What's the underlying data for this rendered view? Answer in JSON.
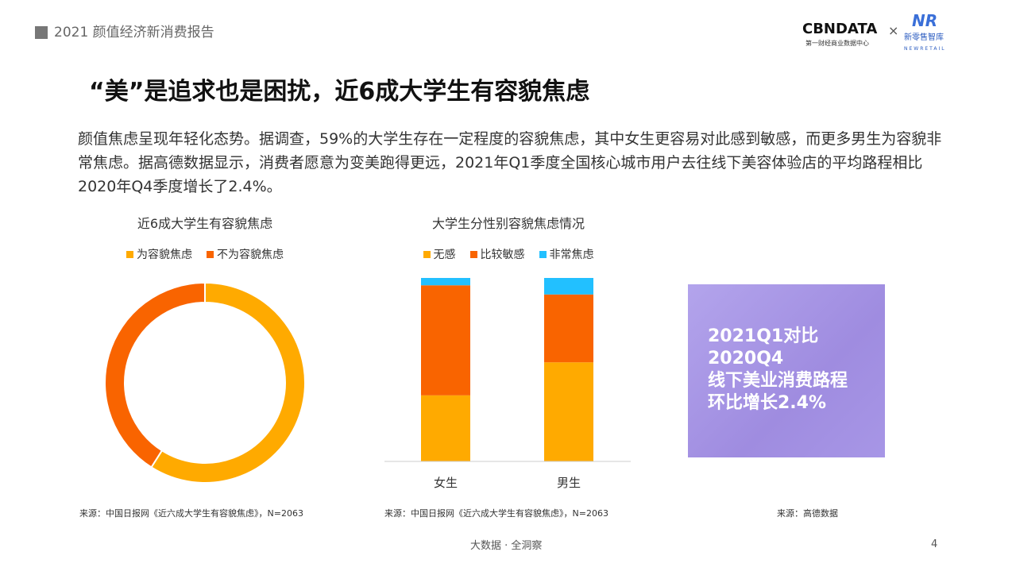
{
  "header": {
    "title": "2021 颜值经济新消费报告"
  },
  "logos": {
    "cbn": "CBNDATA",
    "cbn_sub": "第一财经商业数据中心",
    "times": "×",
    "nr": "NR",
    "nr_name": "新零售智库",
    "nr_en": "NEWRETAIL"
  },
  "main": {
    "title": "“美”是追求也是困扰，近6成大学生有容貌焦虑",
    "paragraph": "颜值焦虑呈现年轻化态势。据调查，59%的大学生存在一定程度的容貌焦虑，其中女生更容易对此感到敏感，而更多男生为容貌非常焦虑。据高德数据显示，消费者愿意为变美跑得更远，2021年Q1季度全国核心城市用户去往线下美容体验店的平均路程相比2020年Q4季度增长了2.4%。"
  },
  "chart_data": [
    {
      "type": "pie",
      "donut": true,
      "title": "近6成大学生有容貌焦虑",
      "legend_position": "top",
      "categories": [
        "为容貌焦虑",
        "不为容貌焦虑"
      ],
      "values": [
        59,
        41
      ],
      "colors": [
        "#FFAA00",
        "#F96400"
      ]
    },
    {
      "type": "bar",
      "stacked": true,
      "title": "大学生分性别容貌焦虑情况",
      "legend_position": "top",
      "categories": [
        "女生",
        "男生"
      ],
      "series": [
        {
          "name": "无感",
          "values": [
            36,
            54
          ],
          "color": "#FFAA00"
        },
        {
          "name": "比较敏感",
          "values": [
            60,
            37
          ],
          "color": "#F96400"
        },
        {
          "name": "非常焦虑",
          "values": [
            4,
            9
          ],
          "color": "#22C0FF"
        }
      ],
      "ylim": [
        0,
        100
      ]
    }
  ],
  "sources": [
    "来源：中国日报网《近六成大学生有容貌焦虑》，N=2063",
    "来源：中国日报网《近六成大学生有容貌焦虑》，N=2063",
    "来源：高德数据"
  ],
  "callout": {
    "lines": [
      "2021Q1对比",
      "2020Q4",
      "线下美业消费路程",
      "环比增长2.4%"
    ]
  },
  "footer": {
    "text": "大数据 · 全洞察",
    "page": "4"
  }
}
